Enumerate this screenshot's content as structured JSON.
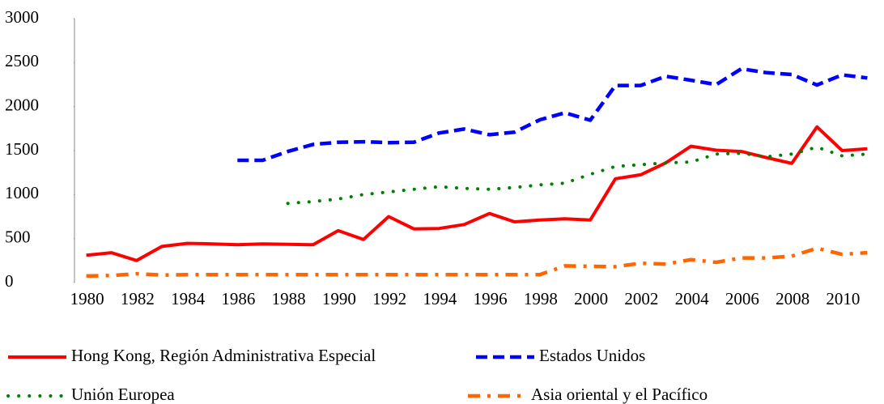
{
  "chart_data": {
    "type": "line",
    "categories": [
      "1980",
      null,
      "1982",
      null,
      "1984",
      null,
      "1986",
      null,
      "1988",
      null,
      "1990",
      null,
      "1992",
      null,
      "1994",
      null,
      "1996",
      null,
      "1998",
      null,
      "2000",
      null,
      "2002",
      null,
      "2004",
      null,
      "2006",
      null,
      "2008",
      null,
      "2010",
      null
    ],
    "series": [
      {
        "name": "Hong Kong, Región Administrativa Especial",
        "color": "#ff0000",
        "style": "solid",
        "values": [
          310,
          340,
          250,
          410,
          445,
          440,
          430,
          440,
          435,
          430,
          590,
          490,
          750,
          610,
          615,
          660,
          785,
          690,
          710,
          725,
          710,
          1180,
          1225,
          1360,
          1550,
          1505,
          1490,
          1420,
          1355,
          1770,
          1500,
          1520
        ]
      },
      {
        "name": "Estados Unidos",
        "color": "#0000ff",
        "style": "dash",
        "values": [
          null,
          null,
          null,
          null,
          null,
          null,
          1390,
          1390,
          1490,
          1570,
          1595,
          1600,
          1590,
          1595,
          1700,
          1745,
          1680,
          1710,
          1850,
          1930,
          1845,
          2240,
          2240,
          2345,
          2300,
          2250,
          2430,
          2385,
          2365,
          2245,
          2360,
          2325
        ]
      },
      {
        "name": "Unión Europea",
        "color": "#008000",
        "style": "dot",
        "values": [
          null,
          null,
          null,
          null,
          null,
          null,
          null,
          null,
          900,
          920,
          950,
          1000,
          1030,
          1060,
          1090,
          1070,
          1060,
          1080,
          1110,
          1130,
          1230,
          1320,
          1340,
          1360,
          1370,
          1460,
          1470,
          1430,
          1460,
          1540,
          1440,
          1460
        ]
      },
      {
        "name": "Asia oriental y el Pacífico",
        "color": "#ff6600",
        "style": "dashdot",
        "values": [
          75,
          80,
          100,
          85,
          90,
          90,
          90,
          90,
          90,
          90,
          90,
          90,
          90,
          90,
          90,
          90,
          90,
          90,
          90,
          190,
          185,
          180,
          220,
          210,
          260,
          230,
          280,
          280,
          300,
          390,
          320,
          340
        ]
      }
    ],
    "ylim": [
      0,
      3000
    ],
    "yticks": [
      0,
      500,
      1000,
      1500,
      2000,
      2500,
      3000
    ],
    "grid": false,
    "legend": "bottom"
  }
}
